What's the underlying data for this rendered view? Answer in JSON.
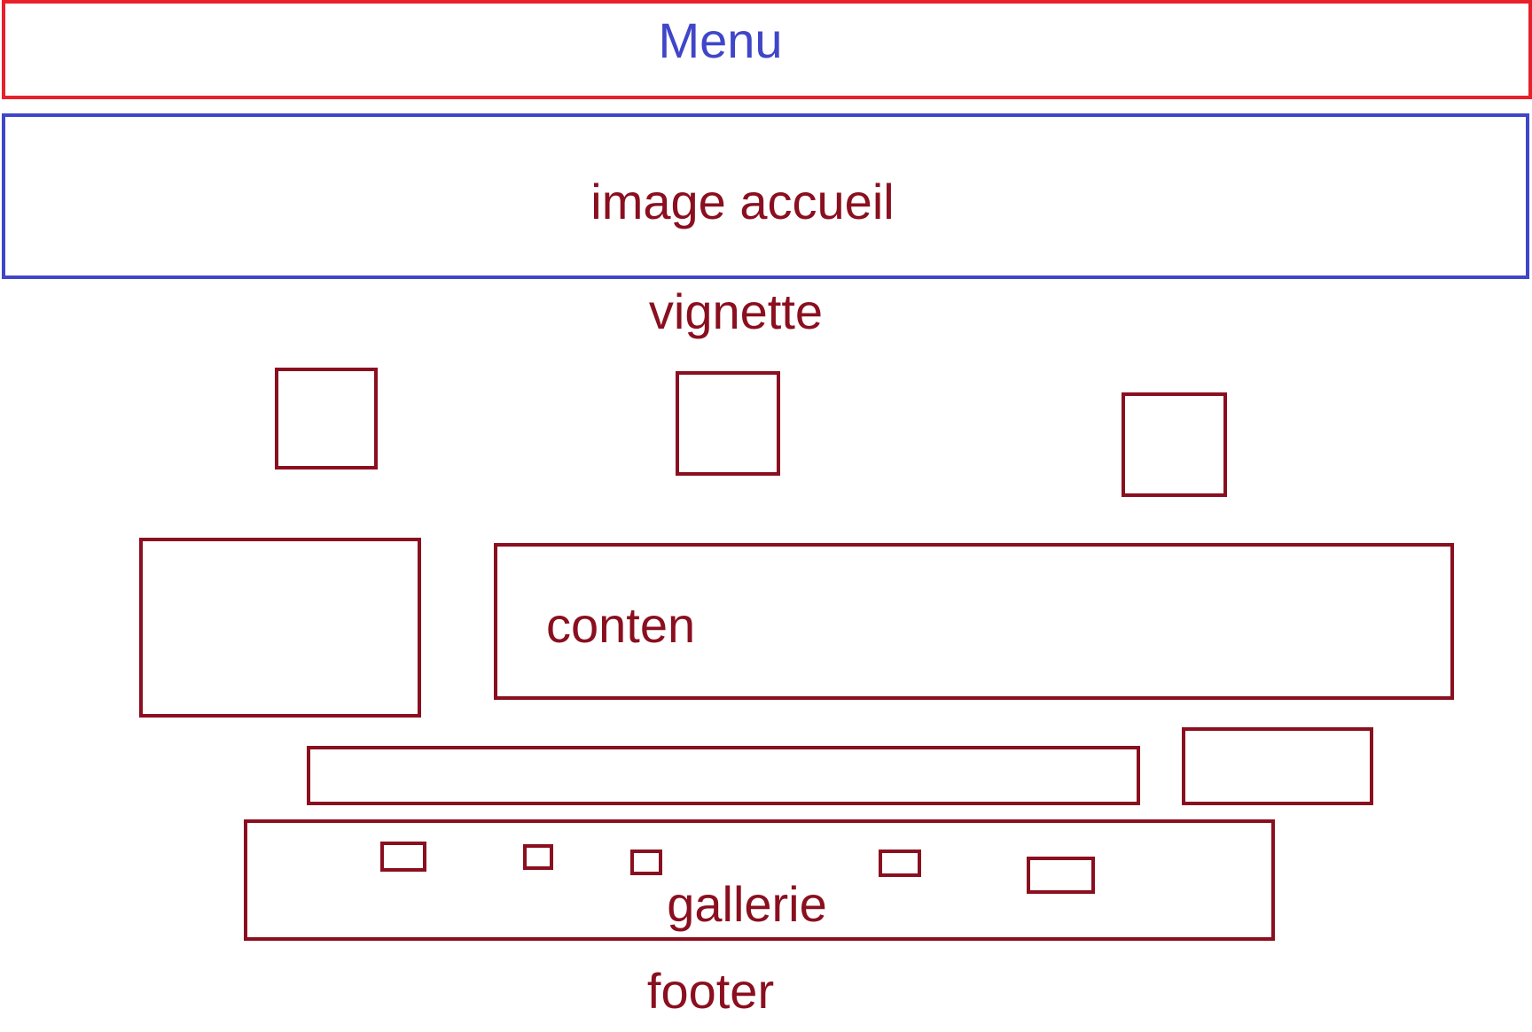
{
  "colors": {
    "menu_border": "#e8202a",
    "menu_text": "#4046c8",
    "hero_border": "#4046c8",
    "wireframe": "#8a0f1f"
  },
  "labels": {
    "menu": "Menu",
    "hero": "image accueil",
    "vignette": "vignette",
    "content": "conten",
    "gallery": "gallerie",
    "footer": "footer"
  }
}
